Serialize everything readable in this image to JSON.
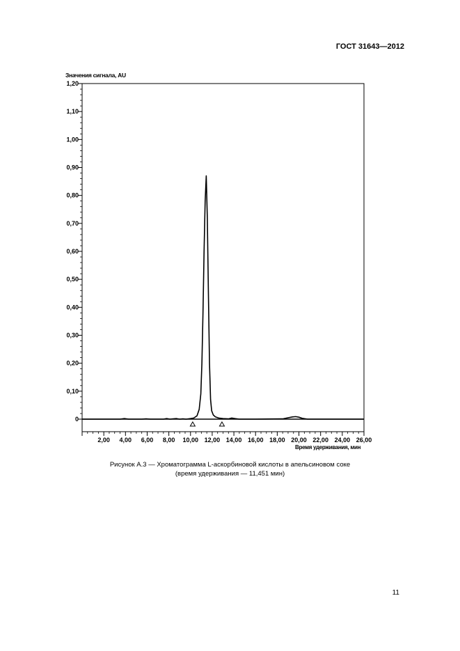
{
  "header": {
    "doc_code": "ГОСТ 31643—2012"
  },
  "chart_data": {
    "type": "line",
    "ylabel": "Значения сигнала, AU",
    "xlabel": "Время удерживания, мин",
    "xlim": [
      0,
      26
    ],
    "ylim": [
      -0.03,
      1.2
    ],
    "x_ticks": [
      "2,00",
      "4,00",
      "6,00",
      "8,00",
      "10,00",
      "12,00",
      "14,00",
      "16,00",
      "18,00",
      "20,00",
      "22,00",
      "24,00",
      "26,00"
    ],
    "y_ticks": [
      "0",
      "0,10",
      "0,20",
      "0,30",
      "0,40",
      "0,50",
      "0,60",
      "0,70",
      "0,80",
      "0,90",
      "1,00",
      "1,10",
      "1,20"
    ],
    "series": [
      {
        "x": [
          0,
          3.5,
          3.9,
          4.3,
          5.5,
          5.9,
          6.3,
          7.5,
          7.8,
          8.1,
          8.4,
          8.7,
          9.0,
          9.3,
          9.6,
          10.0,
          10.3,
          10.6,
          10.8,
          10.95,
          11.05,
          11.15,
          11.25,
          11.35,
          11.451,
          11.55,
          11.65,
          11.75,
          11.85,
          11.95,
          12.1,
          12.3,
          12.6,
          13.0,
          13.5,
          13.8,
          14.1,
          14.5,
          16.0,
          18.5,
          19.0,
          19.4,
          19.7,
          20.0,
          20.3,
          20.8,
          22.0,
          26.0
        ],
        "y": [
          0,
          0,
          0.002,
          0,
          0,
          0.001,
          0,
          0,
          0.002,
          0,
          0.001,
          0.002,
          0,
          0.001,
          0,
          0.002,
          0.004,
          0.012,
          0.035,
          0.09,
          0.2,
          0.38,
          0.6,
          0.78,
          0.87,
          0.72,
          0.45,
          0.2,
          0.07,
          0.03,
          0.015,
          0.008,
          0.004,
          0.002,
          0.001,
          0.004,
          0.002,
          0,
          0,
          0.001,
          0.005,
          0.008,
          0.009,
          0.007,
          0.003,
          0,
          0,
          0
        ]
      }
    ],
    "markers": [
      {
        "x": 10.2,
        "label": "peak-start"
      },
      {
        "x": 12.9,
        "label": "peak-end"
      }
    ]
  },
  "caption": {
    "line1": "Рисунок А.3 — Хроматограмма L-аскорбиновой кислоты в  апельсиновом соке",
    "line2": "(время удерживания — 11,451 мин)"
  },
  "page_number": "11"
}
